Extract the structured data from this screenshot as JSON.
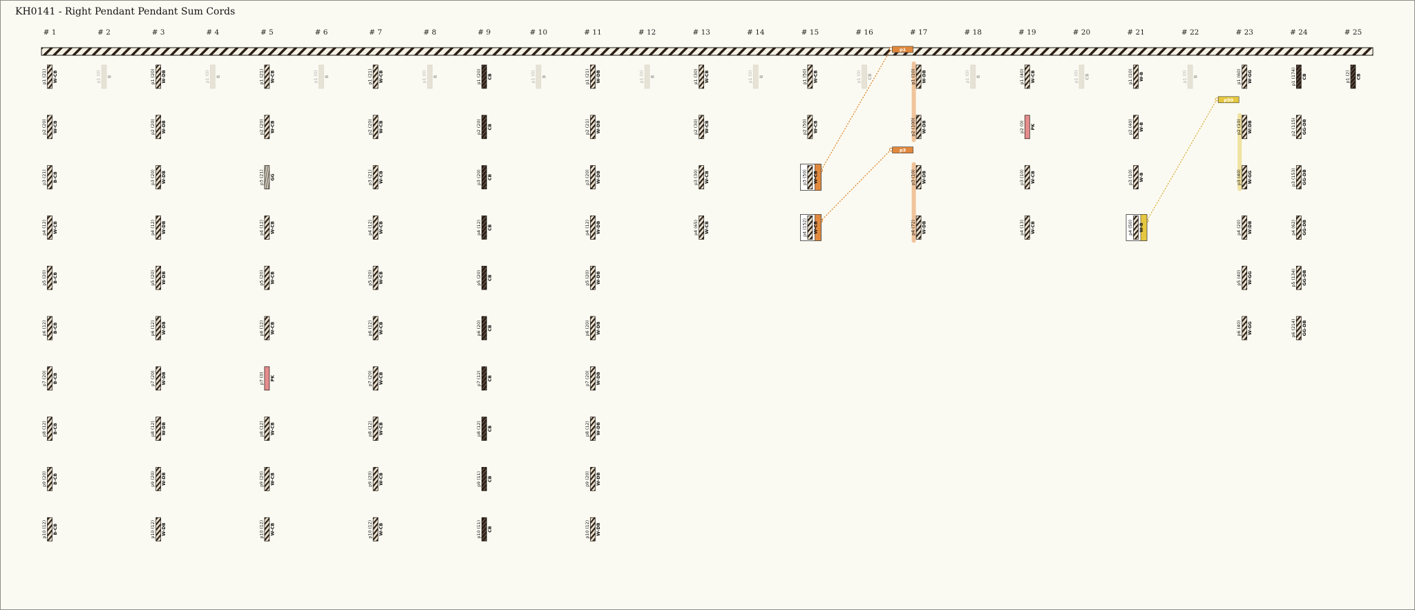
{
  "page": {
    "title": "KH0141 - Right Pendant Pendant Sum Cords"
  },
  "colors": {
    "background": "#fbfaf2",
    "cord_dark": "#2b1f17",
    "cord_stripe": "#eae2cf",
    "ghost": "#e6e2d6",
    "pink": "#e58c8c",
    "orange": "#e0893e",
    "orange_light": "#f0c39a",
    "yellow": "#e5c83f",
    "yellow_light": "#f0e2a0",
    "link_orange": "#d97a18",
    "link_yellow": "#d4a826"
  },
  "diagram": {
    "cords": [
      {
        "label": "# 1",
        "pendants": [
          {
            "label": "p1 (21)",
            "color": "W-CB",
            "pattern": "mixed"
          },
          {
            "label": "p2 (20)",
            "color": "W-CB",
            "pattern": "mixed"
          },
          {
            "label": "p3 (21)",
            "color": "B-CB",
            "pattern": "mixed"
          },
          {
            "label": "p4 (12)",
            "color": "W-CB",
            "pattern": "mixed"
          },
          {
            "label": "p5 (20)",
            "color": "B-CB",
            "pattern": "mixed"
          },
          {
            "label": "p6 (12)",
            "color": "B-CB",
            "pattern": "mixed"
          },
          {
            "label": "p7 (20)",
            "color": "B-CB",
            "pattern": "mixed"
          },
          {
            "label": "p8 (12)",
            "color": "B-CB",
            "pattern": "mixed"
          },
          {
            "label": "p9 (20)",
            "color": "B-CB",
            "pattern": "mixed"
          },
          {
            "label": "p10 (12)",
            "color": "B-CB",
            "pattern": "mixed"
          }
        ]
      },
      {
        "label": "# 2",
        "pendants": [
          {
            "label": "p1 (0)",
            "color": "B",
            "pattern": "ghost"
          }
        ]
      },
      {
        "label": "# 3",
        "pendants": [
          {
            "label": "p1 (20)",
            "color": "W-DB",
            "pattern": "mixed"
          },
          {
            "label": "p2 (20)",
            "color": "W-DB",
            "pattern": "mixed"
          },
          {
            "label": "p3 (20)",
            "color": "W-DB",
            "pattern": "mixed"
          },
          {
            "label": "p4 (12)",
            "color": "W-DB",
            "pattern": "mixed"
          },
          {
            "label": "p5 (20)",
            "color": "W-DB",
            "pattern": "mixed"
          },
          {
            "label": "p6 (12)",
            "color": "W-DB",
            "pattern": "mixed"
          },
          {
            "label": "p7 (20)",
            "color": "W-DB",
            "pattern": "mixed"
          },
          {
            "label": "p8 (12)",
            "color": "W-DB",
            "pattern": "mixed"
          },
          {
            "label": "p9 (20)",
            "color": "W-DB",
            "pattern": "mixed"
          },
          {
            "label": "p10 (12)",
            "color": "W-DB",
            "pattern": "mixed"
          }
        ]
      },
      {
        "label": "# 4",
        "pendants": [
          {
            "label": "p1 (0)",
            "color": "B",
            "pattern": "ghost"
          }
        ]
      },
      {
        "label": "# 5",
        "pendants": [
          {
            "label": "p1 (21)",
            "color": "W-CB",
            "pattern": "mixed"
          },
          {
            "label": "p2 (20)",
            "color": "W-CB",
            "pattern": "mixed"
          },
          {
            "label": "p3 (21)",
            "color": "GG",
            "pattern": "grey"
          },
          {
            "label": "p4 (12)",
            "color": "W-CB",
            "pattern": "mixed"
          },
          {
            "label": "p5 (20)",
            "color": "W-CB",
            "pattern": "mixed"
          },
          {
            "label": "p6 (12)",
            "color": "W-CB",
            "pattern": "mixed"
          },
          {
            "label": "p7 (0)",
            "color": "PK",
            "pattern": "pink"
          },
          {
            "label": "p8 (12)",
            "color": "W-CB",
            "pattern": "mixed"
          },
          {
            "label": "p9 (20)",
            "color": "W-CB",
            "pattern": "mixed"
          },
          {
            "label": "p10 (12)",
            "color": "W-CB",
            "pattern": "mixed"
          }
        ]
      },
      {
        "label": "# 6",
        "pendants": [
          {
            "label": "p1 (0)",
            "color": "B",
            "pattern": "ghost"
          }
        ]
      },
      {
        "label": "# 7",
        "pendants": [
          {
            "label": "p1 (21)",
            "color": "W-CB",
            "pattern": "mixed"
          },
          {
            "label": "p2 (20)",
            "color": "W-CB",
            "pattern": "mixed"
          },
          {
            "label": "p3 (21)",
            "color": "W-CB",
            "pattern": "mixed"
          },
          {
            "label": "p4 (12)",
            "color": "W-CB",
            "pattern": "mixed"
          },
          {
            "label": "p5 (20)",
            "color": "W-CB",
            "pattern": "mixed"
          },
          {
            "label": "p6 (12)",
            "color": "W-CB",
            "pattern": "mixed"
          },
          {
            "label": "p7 (20)",
            "color": "W-CB",
            "pattern": "mixed"
          },
          {
            "label": "p8 (12)",
            "color": "W-CB",
            "pattern": "mixed"
          },
          {
            "label": "p9 (20)",
            "color": "W-CB",
            "pattern": "mixed"
          },
          {
            "label": "p10 (12)",
            "color": "W-CB",
            "pattern": "mixed"
          }
        ]
      },
      {
        "label": "# 8",
        "pendants": [
          {
            "label": "p1 (0)",
            "color": "B",
            "pattern": "ghost"
          }
        ]
      },
      {
        "label": "# 9",
        "pendants": [
          {
            "label": "p1 (20)",
            "color": "CB",
            "pattern": "dark"
          },
          {
            "label": "p2 (20)",
            "color": "CB",
            "pattern": "dark"
          },
          {
            "label": "p3 (20)",
            "color": "CB",
            "pattern": "dark"
          },
          {
            "label": "p4 (12)",
            "color": "CB",
            "pattern": "dark"
          },
          {
            "label": "p5 (20)",
            "color": "CB",
            "pattern": "dark"
          },
          {
            "label": "p6 (20)",
            "color": "CB",
            "pattern": "dark"
          },
          {
            "label": "p7 (12)",
            "color": "CB",
            "pattern": "dark"
          },
          {
            "label": "p8 (12)",
            "color": "CB",
            "pattern": "dark"
          },
          {
            "label": "p9 (11)",
            "color": "CB",
            "pattern": "dark"
          },
          {
            "label": "p10 (11)",
            "color": "CB",
            "pattern": "dark"
          }
        ]
      },
      {
        "label": "# 10",
        "pendants": [
          {
            "label": "p1 (0)",
            "color": "B",
            "pattern": "ghost"
          }
        ]
      },
      {
        "label": "# 11",
        "pendants": [
          {
            "label": "p1 (21)",
            "color": "W-DB",
            "pattern": "mixed"
          },
          {
            "label": "p2 (21)",
            "color": "W-DB",
            "pattern": "mixed"
          },
          {
            "label": "p3 (20)",
            "color": "W-DB",
            "pattern": "mixed"
          },
          {
            "label": "p4 (12)",
            "color": "W-DB",
            "pattern": "mixed"
          },
          {
            "label": "p5 (20)",
            "color": "W-DB",
            "pattern": "mixed"
          },
          {
            "label": "p6 (20)",
            "color": "W-DB",
            "pattern": "mixed"
          },
          {
            "label": "p7 (20)",
            "color": "W-DB",
            "pattern": "mixed"
          },
          {
            "label": "p8 (12)",
            "color": "W-DB",
            "pattern": "mixed"
          },
          {
            "label": "p9 (20)",
            "color": "W-DB",
            "pattern": "mixed"
          },
          {
            "label": "p10 (12)",
            "color": "W-DB",
            "pattern": "mixed"
          }
        ]
      },
      {
        "label": "# 12",
        "pendants": [
          {
            "label": "p1 (0)",
            "color": "B",
            "pattern": "ghost"
          }
        ]
      },
      {
        "label": "# 13",
        "pendants": [
          {
            "label": "p1 (30)",
            "color": "W-CB",
            "pattern": "mixed"
          },
          {
            "label": "p2 (30)",
            "color": "W-CB",
            "pattern": "mixed"
          },
          {
            "label": "p3 (30)",
            "color": "W-CB",
            "pattern": "mixed"
          },
          {
            "label": "p4 (65)",
            "color": "W-CB",
            "pattern": "mixed"
          }
        ]
      },
      {
        "label": "# 14",
        "pendants": [
          {
            "label": "p1 (0)",
            "color": "B",
            "pattern": "ghost"
          }
        ]
      },
      {
        "label": "# 15",
        "pendants": [
          {
            "label": "p1 (50)",
            "color": "W-CB",
            "pattern": "mixed"
          },
          {
            "label": "p2 (50)",
            "color": "W-CB",
            "pattern": "mixed"
          },
          {
            "label": "p3 (50)",
            "color": "W-CB",
            "pattern": "mixed",
            "sum": "orange"
          },
          {
            "label": "p4 (152)",
            "color": "W-CB",
            "pattern": "mixed",
            "sum": "orange"
          }
        ]
      },
      {
        "label": "# 16",
        "pendants": [
          {
            "label": "p1 (0)",
            "color": "CB",
            "pattern": "ghost"
          }
        ]
      },
      {
        "label": "# 17",
        "pendants": [
          {
            "label": "p1 (10)",
            "color": "W-DB",
            "pattern": "mixed",
            "bar": "orange"
          },
          {
            "label": "p2 (100)",
            "color": "W-DB",
            "pattern": "mixed",
            "bar": "orange"
          },
          {
            "label": "p3 (10)",
            "color": "W-DB",
            "pattern": "mixed",
            "bar": "orange"
          },
          {
            "label": "p4 (72)",
            "color": "W-DB",
            "pattern": "mixed",
            "bar": "orange"
          }
        ]
      },
      {
        "label": "# 18",
        "pendants": [
          {
            "label": "p1 (0)",
            "color": "B",
            "pattern": "ghost"
          }
        ]
      },
      {
        "label": "# 19",
        "pendants": [
          {
            "label": "p1 (40)",
            "color": "W-CB",
            "pattern": "mixed"
          },
          {
            "label": "p2 (0)",
            "color": "PK",
            "pattern": "pink"
          },
          {
            "label": "p3 (10)",
            "color": "W-CB",
            "pattern": "mixed"
          },
          {
            "label": "p4 (13)",
            "color": "W-CB",
            "pattern": "mixed"
          }
        ]
      },
      {
        "label": "# 20",
        "pendants": [
          {
            "label": "p1 (0)",
            "color": "CB",
            "pattern": "ghost"
          }
        ]
      },
      {
        "label": "# 21",
        "pendants": [
          {
            "label": "p1 (10)",
            "color": "W-B",
            "pattern": "mixed"
          },
          {
            "label": "p2 (40)",
            "color": "W-B",
            "pattern": "mixed"
          },
          {
            "label": "p3 (10)",
            "color": "W-B",
            "pattern": "mixed"
          },
          {
            "label": "p4 (50)",
            "color": "W-B",
            "pattern": "mixed",
            "sum": "yellow"
          }
        ]
      },
      {
        "label": "# 22",
        "pendants": [
          {
            "label": "p1 (0)",
            "color": "B",
            "pattern": "ghost"
          }
        ]
      },
      {
        "label": "# 23",
        "pendants": [
          {
            "label": "p1 (60)",
            "color": "W-GG",
            "pattern": "mixed"
          },
          {
            "label": "p2 (10)",
            "color": "W:DB",
            "pattern": "mixed",
            "bar": "yellow"
          },
          {
            "label": "p3 (40)",
            "color": "W-GG",
            "pattern": "mixed",
            "bar": "yellow"
          },
          {
            "label": "p4 (20)",
            "color": "W:DB",
            "pattern": "mixed"
          },
          {
            "label": "p5 (40)",
            "color": "W-GG",
            "pattern": "mixed"
          },
          {
            "label": "p6 (40)",
            "color": "W-GG",
            "pattern": "mixed"
          }
        ]
      },
      {
        "label": "# 24",
        "pendants": [
          {
            "label": "p1 (174)",
            "color": "CB",
            "pattern": "dark"
          },
          {
            "label": "p2 (115)",
            "color": "GG-DB",
            "pattern": "mixed"
          },
          {
            "label": "p3 (153)",
            "color": "GG-DB",
            "pattern": "mixed"
          },
          {
            "label": "p4 (62)",
            "color": "GG-DB",
            "pattern": "mixed"
          },
          {
            "label": "p5 (134)",
            "color": "GG-DB",
            "pattern": "mixed"
          },
          {
            "label": "p6 (214)",
            "color": "GG-DB",
            "pattern": "mixed"
          }
        ]
      },
      {
        "label": "# 25",
        "pendants": [
          {
            "label": "p1 (2)",
            "color": "CB",
            "pattern": "dark"
          }
        ]
      }
    ],
    "sum_links": [
      {
        "tag": "p1",
        "from_cord": 17,
        "from_pendant": 1,
        "to_cord": 15,
        "to_pendant": 3,
        "color": "orange"
      },
      {
        "tag": "p3",
        "from_cord": 17,
        "from_pendant": 3,
        "to_cord": 15,
        "to_pendant": 4,
        "color": "orange"
      },
      {
        "tag": "p50",
        "from_cord": 23,
        "from_pendant": 2,
        "to_cord": 21,
        "to_pendant": 4,
        "color": "yellow"
      }
    ]
  }
}
